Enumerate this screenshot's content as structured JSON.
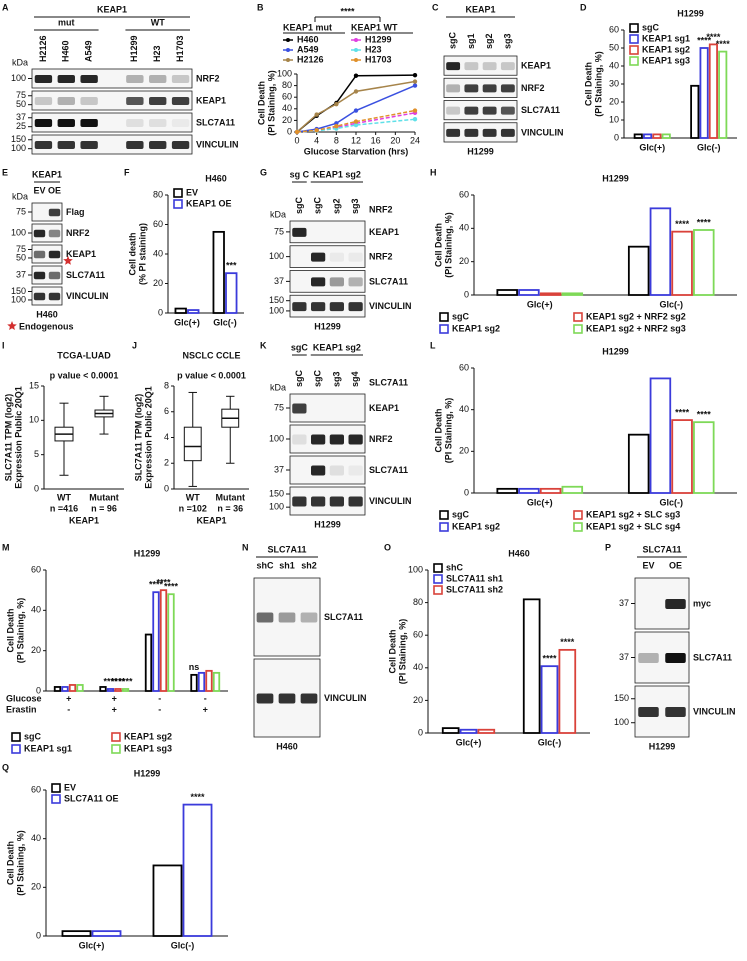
{
  "panels": [
    {
      "letter": "A",
      "blot": {
        "kda": "kDa",
        "header": "KEAP1",
        "groups": [
          {
            "label": "mut",
            "lanes": [
              0,
              2
            ]
          },
          {
            "label": "WT",
            "lanes": [
              4,
              6
            ]
          }
        ],
        "lanes": [
          "H2126",
          "H460",
          "A549",
          null,
          "H1299",
          "H23",
          "H1703"
        ],
        "rows": [
          {
            "label": "NRF2",
            "markers": [
              100
            ]
          },
          {
            "label": "KEAP1",
            "markers": [
              75,
              50
            ]
          },
          {
            "label": "SLC7A11",
            "markers": [
              37,
              25
            ]
          },
          {
            "label": "VINCULIN",
            "markers": [
              150,
              100
            ]
          }
        ]
      }
    },
    {
      "letter": "B",
      "chart": {
        "type": "line",
        "title": "****",
        "legend_groups": [
          "KEAP1 mut",
          "KEAP1 WT"
        ],
        "ylabel": [
          "Cell Death",
          "(PI Staining, %)"
        ],
        "xlabel": "Glucose Starvation (hrs)",
        "x": [
          0,
          4,
          8,
          12,
          24
        ],
        "xlim": [
          0,
          24
        ],
        "xticks": [
          0,
          4,
          8,
          12,
          16,
          20,
          24
        ],
        "ylim": [
          0,
          100
        ],
        "yticks": [
          0,
          20,
          40,
          60,
          80,
          100
        ],
        "series": [
          {
            "name": "H460",
            "color": "#000000",
            "dashed": false,
            "values": [
              0,
              28,
              50,
              97,
              98
            ]
          },
          {
            "name": "A549",
            "color": "#3a50e0",
            "dashed": false,
            "values": [
              0,
              5,
              15,
              37,
              80
            ]
          },
          {
            "name": "H2126",
            "color": "#a6844a",
            "dashed": false,
            "values": [
              0,
              30,
              48,
              70,
              87
            ]
          },
          {
            "name": "H1299",
            "color": "#e040e0",
            "dashed": true,
            "values": [
              0,
              2,
              8,
              15,
              33
            ]
          },
          {
            "name": "H23",
            "color": "#5fe0e8",
            "dashed": true,
            "values": [
              0,
              2,
              6,
              12,
              22
            ]
          },
          {
            "name": "H1703",
            "color": "#e0902a",
            "dashed": true,
            "values": [
              0,
              3,
              10,
              18,
              37
            ]
          }
        ]
      }
    },
    {
      "letter": "C",
      "blot": {
        "header": "KEAP1",
        "lanes": [
          "sgC",
          "sg1",
          "sg2",
          "sg3"
        ],
        "rows": [
          {
            "label": "KEAP1"
          },
          {
            "label": "NRF2"
          },
          {
            "label": "SLC7A11"
          },
          {
            "label": "VINCULIN"
          }
        ],
        "footer": "H1299"
      }
    },
    {
      "letter": "D",
      "chart": {
        "type": "bar",
        "title": "H1299",
        "legend": "upper left",
        "ylabel": [
          "Cell Death",
          "(PI Staining, %)"
        ],
        "categories": [
          "Glc(+)",
          "Glc(-)"
        ],
        "ylim": [
          0,
          60
        ],
        "yticks": [
          0,
          10,
          20,
          30,
          40,
          50,
          60
        ],
        "series": [
          {
            "name": "sgC",
            "color": "#000000",
            "values": [
              2,
              29
            ],
            "marks": [
              null,
              null
            ]
          },
          {
            "name": "KEAP1 sg1",
            "color": "#3b3bdb",
            "values": [
              2,
              50
            ],
            "marks": [
              null,
              "****"
            ]
          },
          {
            "name": "KEAP1 sg2",
            "color": "#d9423a",
            "values": [
              2,
              52
            ],
            "marks": [
              null,
              "****"
            ]
          },
          {
            "name": "KEAP1 sg3",
            "color": "#7ed957",
            "values": [
              2,
              48
            ],
            "marks": [
              null,
              "****"
            ]
          }
        ]
      }
    },
    {
      "letter": "E",
      "blot": {
        "kda": "kDa",
        "header": "KEAP1",
        "lanes": [
          "EV",
          "OE"
        ],
        "rows": [
          {
            "label": "Flag",
            "markers": [
              75
            ]
          },
          {
            "label": "NRF2",
            "markers": [
              100
            ]
          },
          {
            "label": "KEAP1",
            "markers": [
              75,
              50
            ]
          },
          {
            "label": "SLC7A11",
            "markers": [
              37
            ]
          },
          {
            "label": "VINCULIN",
            "markers": [
              150,
              100
            ]
          }
        ],
        "footer": "H460",
        "note": "Endogenous"
      }
    },
    {
      "letter": "F",
      "chart": {
        "type": "bar",
        "title": "H460",
        "legend": "upper left",
        "ylabel": [
          "Cell death",
          "(% PI staining)"
        ],
        "categories": [
          "Glc(+)",
          "Glc(-)"
        ],
        "ylim": [
          0,
          80
        ],
        "yticks": [
          0,
          20,
          40,
          60,
          80
        ],
        "series": [
          {
            "name": "EV",
            "color": "#000000",
            "values": [
              3,
              55
            ],
            "marks": [
              null,
              null
            ]
          },
          {
            "name": "KEAP1 OE",
            "color": "#3b3bdb",
            "values": [
              2,
              27
            ],
            "marks": [
              null,
              "***"
            ]
          }
        ]
      }
    },
    {
      "letter": "G",
      "blot": {
        "kda": "kDa",
        "groups": [
          {
            "label": "sg C",
            "lanes": [
              0,
              0
            ]
          },
          {
            "label": "KEAP1 sg2",
            "lanes": [
              1,
              3
            ]
          }
        ],
        "side": "NRF2",
        "lanes": [
          "sgC",
          "sgC",
          "sg2",
          "sg3"
        ],
        "rows": [
          {
            "label": "KEAP1",
            "markers": [
              75
            ]
          },
          {
            "label": "NRF2",
            "markers": [
              100
            ]
          },
          {
            "label": "SLC7A11",
            "markers": [
              37
            ]
          },
          {
            "label": "VINCULIN",
            "markers": [
              150,
              100
            ]
          }
        ],
        "footer": "H1299"
      }
    },
    {
      "letter": "H",
      "chart": {
        "type": "bar",
        "title": "H1299",
        "legend": "bottom",
        "ylabel": [
          "Cell Death",
          "(PI Staining, %)"
        ],
        "categories": [
          "Glc(+)",
          "Glc(-)"
        ],
        "ylim": [
          0,
          60
        ],
        "yticks": [
          0,
          20,
          40,
          60
        ],
        "series": [
          {
            "name": "sgC",
            "color": "#000000",
            "values": [
              3,
              29
            ],
            "marks": [
              null,
              null
            ]
          },
          {
            "name": "KEAP1 sg2",
            "color": "#3b3bdb",
            "values": [
              3,
              52
            ],
            "marks": [
              null,
              null
            ]
          },
          {
            "name": "KEAP1 sg2 + NRF2 sg2",
            "color": "#d9423a",
            "values": [
              1,
              38
            ],
            "marks": [
              null,
              "****"
            ]
          },
          {
            "name": "KEAP1 sg2 + NRF2 sg3",
            "color": "#7ed957",
            "values": [
              1,
              39
            ],
            "marks": [
              null,
              "****"
            ]
          }
        ]
      }
    },
    {
      "letter": "I",
      "chart": {
        "type": "box",
        "title": "TCGA-LUAD",
        "annotation": "p value < 0.0001",
        "ylabel": [
          "SLC7A11 TPM (log2)",
          "Expression Public 20Q1"
        ],
        "categories": [
          "WT",
          "Mutant"
        ],
        "n": [
          "n =416",
          "n = 96"
        ],
        "xlabel": "KEAP1",
        "ylim": [
          0,
          15
        ],
        "yticks": [
          0,
          5,
          10,
          15
        ],
        "boxes": [
          {
            "min": 2,
            "q1": 7,
            "median": 8,
            "q3": 9,
            "max": 12.5
          },
          {
            "min": 8,
            "q1": 10.5,
            "median": 11,
            "q3": 11.5,
            "max": 13.5
          }
        ]
      }
    },
    {
      "letter": "J",
      "chart": {
        "type": "box",
        "title": "NSCLC CCLE",
        "annotation": "p value < 0.0001",
        "ylabel": [
          "SLC7A11 TPM (log2)",
          "Expression Public 20Q1"
        ],
        "categories": [
          "WT",
          "Mutant"
        ],
        "n": [
          "n =102",
          "n = 36"
        ],
        "xlabel": "KEAP1",
        "ylim": [
          0,
          8
        ],
        "yticks": [
          0,
          2,
          4,
          6,
          8
        ],
        "boxes": [
          {
            "min": 0.2,
            "q1": 2.2,
            "median": 3.3,
            "q3": 4.8,
            "max": 7.5
          },
          {
            "min": 2,
            "q1": 4.8,
            "median": 5.5,
            "q3": 6.2,
            "max": 7.2
          }
        ]
      }
    },
    {
      "letter": "K",
      "blot": {
        "kda": "kDa",
        "groups": [
          {
            "label": "sgC",
            "lanes": [
              0,
              0
            ]
          },
          {
            "label": "KEAP1 sg2",
            "lanes": [
              1,
              3
            ]
          }
        ],
        "side": "SLC7A11",
        "lanes": [
          "sgC",
          "sgC",
          "sg3",
          "sg4"
        ],
        "rows": [
          {
            "label": "KEAP1",
            "markers": [
              75
            ]
          },
          {
            "label": "NRF2",
            "markers": [
              100
            ]
          },
          {
            "label": "SLC7A11",
            "markers": [
              37
            ]
          },
          {
            "label": "VINCULIN",
            "markers": [
              150,
              100
            ]
          }
        ],
        "footer": "H1299"
      }
    },
    {
      "letter": "L",
      "chart": {
        "type": "bar",
        "title": "H1299",
        "legend": "bottom",
        "ylabel": [
          "Cell Death",
          "(PI Staining, %)"
        ],
        "categories": [
          "Glc(+)",
          "Glc(-)"
        ],
        "ylim": [
          0,
          60
        ],
        "yticks": [
          0,
          20,
          40,
          60
        ],
        "series": [
          {
            "name": "sgC",
            "color": "#000000",
            "values": [
              2,
              28
            ],
            "marks": [
              null,
              null
            ]
          },
          {
            "name": "KEAP1 sg2",
            "color": "#3b3bdb",
            "values": [
              2,
              55
            ],
            "marks": [
              null,
              null
            ]
          },
          {
            "name": "KEAP1 sg2 + SLC sg3",
            "color": "#d9423a",
            "values": [
              2,
              35
            ],
            "marks": [
              null,
              "****"
            ]
          },
          {
            "name": "KEAP1 sg2 + SLC sg4",
            "color": "#7ed957",
            "values": [
              3,
              34
            ],
            "marks": [
              null,
              "****"
            ]
          }
        ]
      }
    },
    {
      "letter": "M",
      "chart": {
        "type": "bar",
        "title": "H1299",
        "legend": "bottom",
        "ylabel": [
          "Cell Death",
          "(PI Staining, %)"
        ],
        "categories": [
          null,
          null,
          null,
          null
        ],
        "signs": [
          {
            "label": "Glucose",
            "values": [
              "+",
              "+",
              "-",
              "-"
            ]
          },
          {
            "label": "Erastin",
            "values": [
              "-",
              "+",
              "-",
              "+"
            ]
          }
        ],
        "ylim": [
          0,
          60
        ],
        "yticks": [
          0,
          20,
          40,
          60
        ],
        "series": [
          {
            "name": "sgC",
            "color": "#000000",
            "values": [
              2,
              2,
              28,
              8
            ],
            "marks": [
              null,
              null,
              null,
              "ns"
            ]
          },
          {
            "name": "KEAP1 sg1",
            "color": "#3b3bdb",
            "values": [
              2,
              1,
              49,
              9
            ],
            "marks": [
              null,
              "****",
              "****",
              null
            ]
          },
          {
            "name": "KEAP1 sg2",
            "color": "#d9423a",
            "values": [
              3,
              1,
              50,
              10
            ],
            "marks": [
              null,
              "****",
              "****",
              null
            ]
          },
          {
            "name": "KEAP1 sg3",
            "color": "#7ed957",
            "values": [
              3,
              1,
              48,
              9
            ],
            "marks": [
              null,
              "****",
              "****",
              null
            ]
          }
        ]
      }
    },
    {
      "letter": "N",
      "blot": {
        "header": "SLC7A11",
        "lanes": [
          "shC",
          "sh1",
          "sh2"
        ],
        "rows": [
          {
            "label": "SLC7A11"
          },
          {
            "label": "VINCULIN"
          }
        ],
        "footer": "H460"
      }
    },
    {
      "letter": "O",
      "chart": {
        "type": "bar",
        "title": "H460",
        "legend": "upper left",
        "ylabel": [
          "Cell Death",
          "(PI Staining, %)"
        ],
        "categories": [
          "Glc(+)",
          "Glc(-)"
        ],
        "ylim": [
          0,
          100
        ],
        "yticks": [
          0,
          20,
          40,
          60,
          80,
          100
        ],
        "series": [
          {
            "name": "shC",
            "color": "#000000",
            "values": [
              3,
              82
            ],
            "marks": [
              null,
              null
            ]
          },
          {
            "name": "SLC7A11 sh1",
            "color": "#3b3bdb",
            "values": [
              2,
              41
            ],
            "marks": [
              null,
              "****"
            ]
          },
          {
            "name": "SLC7A11 sh2",
            "color": "#d9423a",
            "values": [
              2,
              51
            ],
            "marks": [
              null,
              "****"
            ]
          }
        ]
      }
    },
    {
      "letter": "P",
      "blot": {
        "header": "SLC7A11",
        "lanes": [
          "EV",
          "OE"
        ],
        "rows": [
          {
            "label": "myc",
            "markers": [
              37
            ]
          },
          {
            "label": "SLC7A11",
            "markers": [
              37
            ]
          },
          {
            "label": "VINCULIN",
            "markers": [
              150,
              100
            ]
          }
        ],
        "footer": "H1299"
      }
    },
    {
      "letter": "Q",
      "chart": {
        "type": "bar",
        "title": "H1299",
        "legend": "upper left",
        "ylabel": [
          "Cell Death",
          "(PI Staining, %)"
        ],
        "categories": [
          "Glc(+)",
          "Glc(-)"
        ],
        "ylim": [
          0,
          60
        ],
        "yticks": [
          0,
          20,
          40,
          60
        ],
        "series": [
          {
            "name": "EV",
            "color": "#000000",
            "values": [
              2,
              29
            ],
            "marks": [
              null,
              null
            ]
          },
          {
            "name": "SLC7A11 OE",
            "color": "#3b3bdb",
            "values": [
              2,
              54
            ],
            "marks": [
              null,
              "****"
            ]
          }
        ]
      }
    }
  ]
}
